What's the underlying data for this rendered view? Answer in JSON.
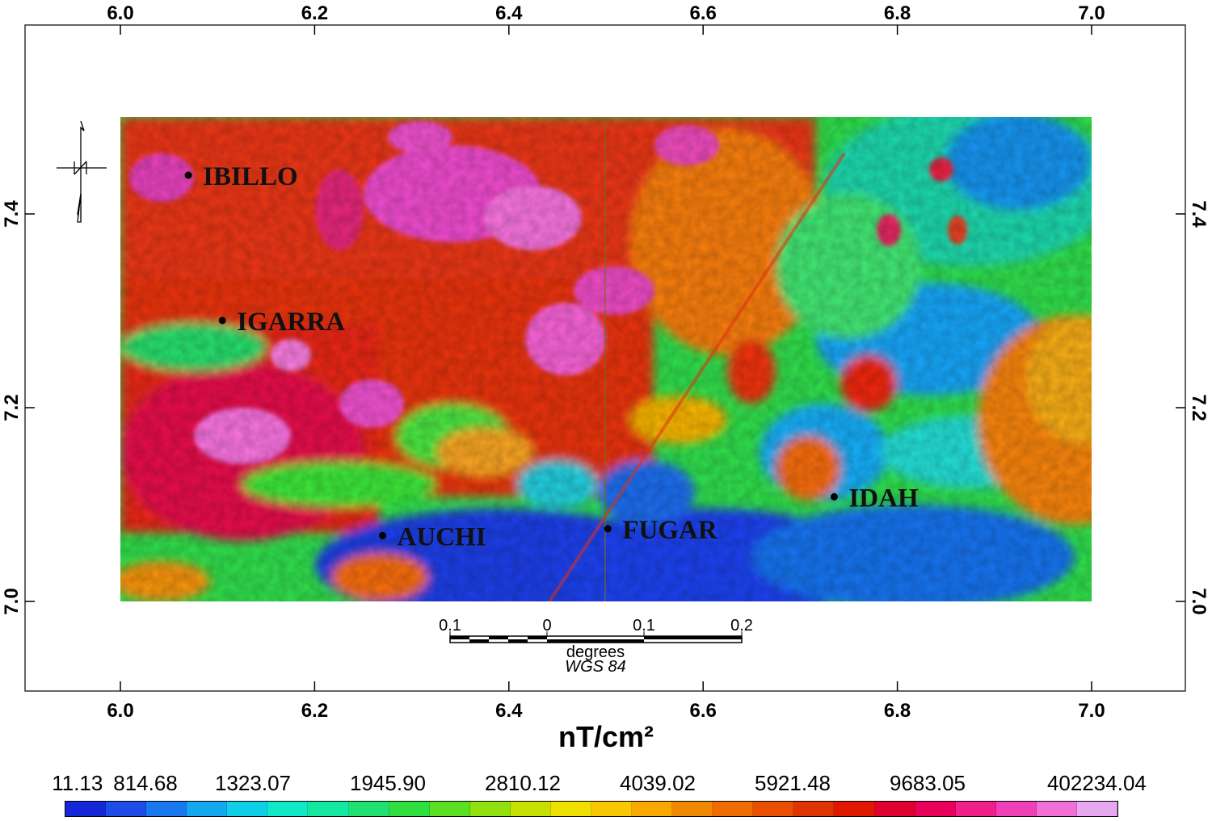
{
  "map": {
    "x_ticks": [
      "6.0",
      "6.2",
      "6.4",
      "6.6",
      "6.8",
      "7.0"
    ],
    "y_ticks": [
      "7.4",
      "7.2",
      "7.0"
    ],
    "towns": [
      {
        "name": "IBILLO",
        "lon": 6.07,
        "lat": 7.44
      },
      {
        "name": "IGARRA",
        "lon": 6.105,
        "lat": 7.29
      },
      {
        "name": "AUCHI",
        "lon": 6.27,
        "lat": 7.068
      },
      {
        "name": "FUGAR",
        "lon": 6.502,
        "lat": 7.075
      },
      {
        "name": "IDAH",
        "lon": 6.735,
        "lat": 7.108
      }
    ],
    "extent": {
      "lon": [
        6.0,
        7.0
      ],
      "lat": [
        7.0,
        7.5
      ]
    },
    "frame": {
      "lon": [
        5.9,
        7.1
      ],
      "lat": [
        6.9,
        7.6
      ]
    },
    "north_arrow": "north-arrow-icon"
  },
  "scale_bar": {
    "labels": [
      "0.1",
      "0",
      "0.1",
      "0.2"
    ],
    "unit": "degrees",
    "datum": "WGS 84"
  },
  "unit_title": "nT/cm²",
  "legend": {
    "labels": [
      "11.13",
      "814.68",
      "1323.07",
      "1945.90",
      "2810.12",
      "4039.02",
      "5921.48",
      "9683.05",
      "402234.04"
    ],
    "colors": [
      "#1428d8",
      "#1e4ce8",
      "#1a78f0",
      "#14a8f0",
      "#10d0e8",
      "#10e8c8",
      "#14e8a0",
      "#20e070",
      "#30e040",
      "#5ae020",
      "#90e010",
      "#c8e000",
      "#f0e000",
      "#f8c800",
      "#f8a800",
      "#f08800",
      "#f06c00",
      "#e85000",
      "#e03400",
      "#e01800",
      "#e00030",
      "#e8005a",
      "#f0208a",
      "#f040b8",
      "#f070d8",
      "#e8a8f0"
    ]
  }
}
